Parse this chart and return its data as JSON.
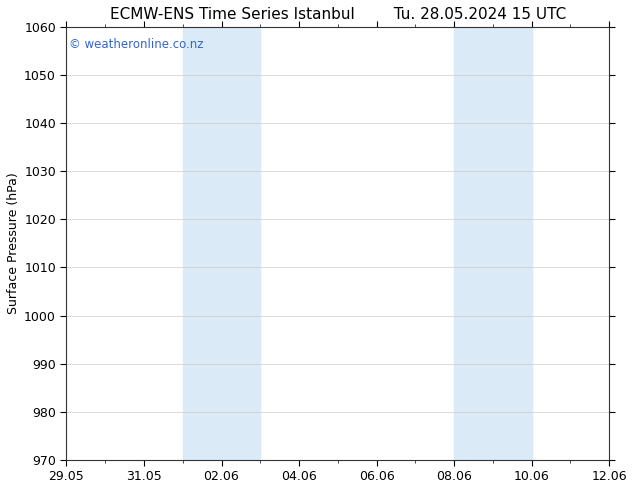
{
  "title_left": "ECMW-ENS Time Series Istanbul",
  "title_right": "Tu. 28.05.2024 15 UTC",
  "ylabel": "Surface Pressure (hPa)",
  "ylim": [
    970,
    1060
  ],
  "yticks": [
    970,
    980,
    990,
    1000,
    1010,
    1020,
    1030,
    1040,
    1050,
    1060
  ],
  "xlim_start": "2024-05-29",
  "xlim_end": "2024-06-12",
  "xtick_labels": [
    "29.05",
    "31.05",
    "02.06",
    "04.06",
    "06.06",
    "08.06",
    "10.06",
    "12.06"
  ],
  "xtick_dates": [
    "2024-05-29",
    "2024-05-31",
    "2024-06-02",
    "2024-06-04",
    "2024-06-06",
    "2024-06-08",
    "2024-06-10",
    "2024-06-12"
  ],
  "shaded_bands": [
    {
      "start": "2024-06-01",
      "end": "2024-06-03"
    },
    {
      "start": "2024-06-08",
      "end": "2024-06-10"
    }
  ],
  "band_color": "#daeaf7",
  "watermark": "© weatheronline.co.nz",
  "watermark_color": "#3366cc",
  "bg_color": "#ffffff",
  "grid_color": "#cccccc",
  "title_fontsize": 11,
  "axis_label_fontsize": 9,
  "tick_fontsize": 9
}
